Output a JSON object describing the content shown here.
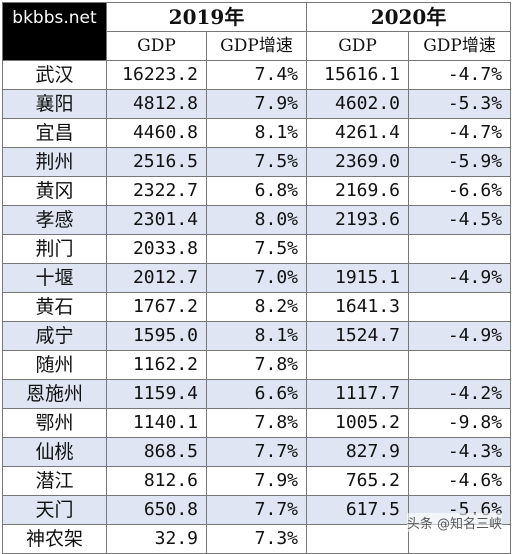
{
  "watermark_top": "bkbbs.net",
  "watermark_bottom": "头条 @知名三峡",
  "years": [
    "2019年",
    "2020年"
  ],
  "columns": [
    "GDP",
    "GDP增速",
    "GDP",
    "GDP增速"
  ],
  "rows": [
    {
      "city": "武汉",
      "gdp2019": "16223.2",
      "g2019": "7.4%",
      "gdp2020": "15616.1",
      "g2020": "-4.7%"
    },
    {
      "city": "襄阳",
      "gdp2019": "4812.8",
      "g2019": "7.9%",
      "gdp2020": "4602.0",
      "g2020": "-5.3%"
    },
    {
      "city": "宜昌",
      "gdp2019": "4460.8",
      "g2019": "8.1%",
      "gdp2020": "4261.4",
      "g2020": "-4.7%"
    },
    {
      "city": "荆州",
      "gdp2019": "2516.5",
      "g2019": "7.5%",
      "gdp2020": "2369.0",
      "g2020": "-5.9%"
    },
    {
      "city": "黄冈",
      "gdp2019": "2322.7",
      "g2019": "6.8%",
      "gdp2020": "2169.6",
      "g2020": "-6.6%"
    },
    {
      "city": "孝感",
      "gdp2019": "2301.4",
      "g2019": "8.0%",
      "gdp2020": "2193.6",
      "g2020": "-4.5%"
    },
    {
      "city": "荆门",
      "gdp2019": "2033.8",
      "g2019": "7.5%",
      "gdp2020": "",
      "g2020": ""
    },
    {
      "city": "十堰",
      "gdp2019": "2012.7",
      "g2019": "7.0%",
      "gdp2020": "1915.1",
      "g2020": "-4.9%"
    },
    {
      "city": "黄石",
      "gdp2019": "1767.2",
      "g2019": "8.2%",
      "gdp2020": "1641.3",
      "g2020": ""
    },
    {
      "city": "咸宁",
      "gdp2019": "1595.0",
      "g2019": "8.1%",
      "gdp2020": "1524.7",
      "g2020": "-4.9%"
    },
    {
      "city": "随州",
      "gdp2019": "1162.2",
      "g2019": "7.8%",
      "gdp2020": "",
      "g2020": ""
    },
    {
      "city": "恩施州",
      "gdp2019": "1159.4",
      "g2019": "6.6%",
      "gdp2020": "1117.7",
      "g2020": "-4.2%"
    },
    {
      "city": "鄂州",
      "gdp2019": "1140.1",
      "g2019": "7.8%",
      "gdp2020": "1005.2",
      "g2020": "-9.8%"
    },
    {
      "city": "仙桃",
      "gdp2019": "868.5",
      "g2019": "7.7%",
      "gdp2020": "827.9",
      "g2020": "-4.3%"
    },
    {
      "city": "潜江",
      "gdp2019": "812.6",
      "g2019": "7.9%",
      "gdp2020": "765.2",
      "g2020": "-4.6%"
    },
    {
      "city": "天门",
      "gdp2019": "650.8",
      "g2019": "7.7%",
      "gdp2020": "617.5",
      "g2020": "-5.6%"
    },
    {
      "city": "神农架",
      "gdp2019": "32.9",
      "g2019": "7.3%",
      "gdp2020": "",
      "g2020": ""
    }
  ]
}
